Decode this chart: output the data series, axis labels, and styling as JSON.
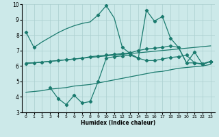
{
  "xlabel": "Humidex (Indice chaleur)",
  "xlim": [
    -0.5,
    23.5
  ],
  "ylim": [
    3,
    10
  ],
  "xticks": [
    0,
    1,
    2,
    3,
    4,
    5,
    6,
    7,
    8,
    9,
    10,
    11,
    12,
    13,
    14,
    15,
    16,
    17,
    18,
    19,
    20,
    21,
    22,
    23
  ],
  "yticks": [
    3,
    4,
    5,
    6,
    7,
    8,
    9,
    10
  ],
  "bg_color": "#cce9e9",
  "grid_color": "#aacfcf",
  "line_color": "#1a7a6e",
  "line1_x": [
    0,
    1,
    2,
    3,
    4,
    5,
    6,
    7,
    8,
    9,
    10,
    11,
    12,
    13,
    14,
    15,
    16,
    17,
    18,
    19,
    20,
    21,
    22,
    23
  ],
  "line1_y": [
    8.2,
    7.2,
    null,
    null,
    null,
    null,
    null,
    null,
    null,
    9.3,
    9.9,
    null,
    7.2,
    null,
    6.5,
    9.6,
    8.9,
    9.2,
    7.8,
    null,
    null,
    6.9,
    null,
    6.3
  ],
  "line1_full_x": [
    0,
    1,
    2,
    3,
    4,
    5,
    6,
    7,
    8,
    9,
    10,
    11,
    12,
    13,
    14,
    15,
    16,
    17,
    18,
    19,
    20,
    21,
    22,
    23
  ],
  "line1_full_y": [
    8.2,
    7.2,
    7.55,
    7.85,
    8.15,
    8.4,
    8.6,
    8.75,
    8.85,
    9.3,
    9.9,
    9.1,
    7.2,
    6.8,
    6.5,
    9.6,
    8.9,
    9.2,
    7.8,
    7.2,
    6.2,
    6.9,
    6.1,
    6.3
  ],
  "line2_x": [
    0,
    1,
    2,
    3,
    4,
    5,
    6,
    7,
    8,
    9,
    10,
    11,
    12,
    13,
    14,
    15,
    16,
    17,
    18,
    19,
    20,
    21,
    22,
    23
  ],
  "line2_y": [
    6.2,
    6.2,
    6.25,
    6.3,
    6.35,
    6.4,
    6.45,
    6.5,
    6.55,
    6.6,
    6.65,
    6.7,
    6.75,
    6.8,
    6.85,
    6.9,
    6.95,
    7.0,
    7.05,
    7.1,
    7.15,
    7.2,
    7.25,
    7.3
  ],
  "line3_x": [
    0,
    1,
    2,
    3,
    4,
    5,
    6,
    7,
    8,
    9,
    10,
    11,
    12,
    13,
    14,
    15,
    16,
    17,
    18,
    19,
    20,
    21,
    22,
    23
  ],
  "line3_y": [
    6.15,
    6.2,
    6.25,
    6.3,
    6.35,
    6.4,
    6.45,
    6.5,
    6.6,
    6.65,
    6.7,
    6.75,
    6.8,
    6.85,
    7.0,
    7.1,
    7.15,
    7.2,
    7.3,
    7.2,
    6.2,
    6.2,
    6.1,
    6.3
  ],
  "line4_x": [
    3,
    4,
    5,
    6,
    7,
    8,
    9,
    10,
    11,
    12,
    13,
    14,
    15,
    16,
    17,
    18,
    19,
    20,
    21,
    22,
    23
  ],
  "line4_y": [
    4.6,
    3.9,
    3.5,
    4.1,
    3.6,
    3.7,
    5.0,
    6.5,
    6.6,
    6.65,
    6.7,
    6.5,
    6.35,
    6.35,
    6.45,
    6.55,
    6.6,
    6.7,
    6.2,
    6.15,
    6.3
  ],
  "line5_x": [
    0,
    1,
    2,
    3,
    4,
    5,
    6,
    7,
    8,
    9,
    10,
    11,
    12,
    13,
    14,
    15,
    16,
    17,
    18,
    19,
    20,
    21,
    22,
    23
  ],
  "line5_y": [
    4.3,
    4.35,
    4.4,
    4.5,
    4.55,
    4.6,
    4.7,
    4.75,
    4.8,
    4.9,
    5.0,
    5.1,
    5.2,
    5.3,
    5.4,
    5.5,
    5.6,
    5.65,
    5.75,
    5.85,
    5.9,
    5.95,
    6.0,
    6.1
  ]
}
